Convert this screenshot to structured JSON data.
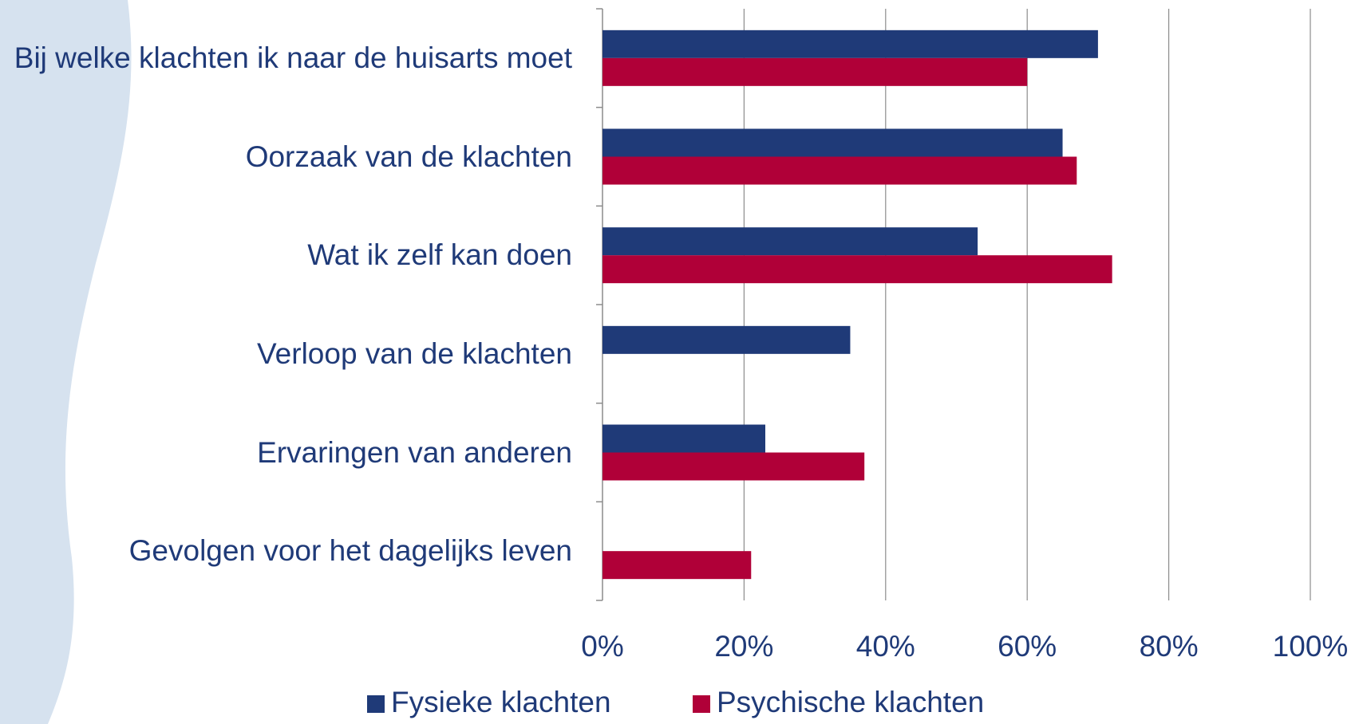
{
  "chart_data": {
    "type": "hbar",
    "categories": [
      "Bij welke klachten ik naar de huisarts moet",
      "Oorzaak van de klachten",
      "Wat ik zelf kan doen",
      "Verloop van de klachten",
      "Ervaringen van anderen",
      "Gevolgen voor het dagelijks leven"
    ],
    "series": [
      {
        "name": "Fysieke klachten",
        "color": "#1f3a78",
        "values": [
          70,
          65,
          53,
          35,
          23,
          null
        ]
      },
      {
        "name": "Psychische klachten",
        "color": "#b00038",
        "values": [
          60,
          67,
          72,
          null,
          37,
          21
        ]
      }
    ],
    "xlim": [
      0,
      100
    ],
    "xticks": [
      {
        "value": 0,
        "label": "0%"
      },
      {
        "value": 20,
        "label": "20%"
      },
      {
        "value": 40,
        "label": "40%"
      },
      {
        "value": 60,
        "label": "60%"
      },
      {
        "value": 80,
        "label": "80%"
      },
      {
        "value": 100,
        "label": "100%"
      }
    ],
    "grid": true,
    "legend": "bottom"
  }
}
